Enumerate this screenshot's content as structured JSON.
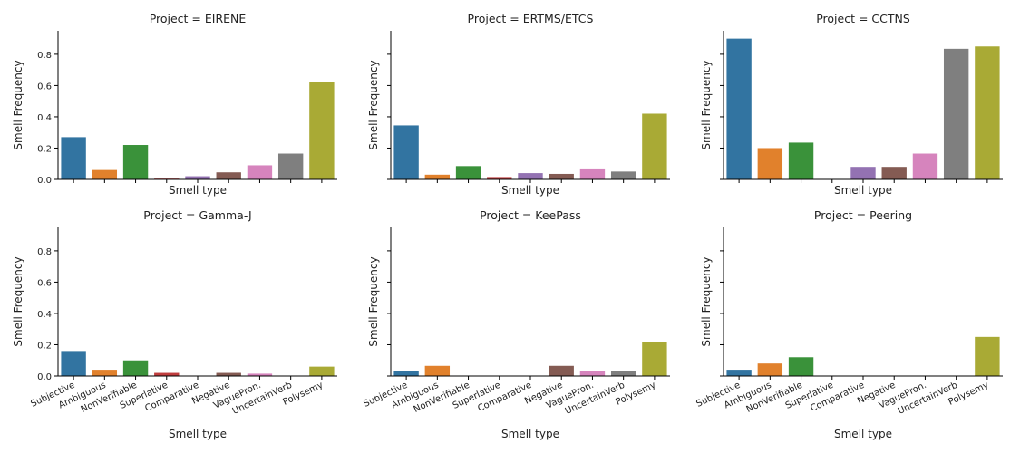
{
  "chart_data": {
    "type": "bar",
    "layout": "facet-grid",
    "facet_label_prefix": "Project = ",
    "xlabel": "Smell type",
    "ylabel": "Smell Frequency",
    "ylim": [
      0,
      0.95
    ],
    "yticks": [
      0.0,
      0.2,
      0.4,
      0.6,
      0.8
    ],
    "ytick_labels": [
      "0.0",
      "0.2",
      "0.4",
      "0.6",
      "0.8"
    ],
    "grid": false,
    "legend": "none",
    "categories": [
      "Subjective",
      "Ambiguous",
      "NonVerifiable",
      "Superlative",
      "Comparative",
      "Negative",
      "VaguePron.",
      "UncertainVerb",
      "Polysemy"
    ],
    "colors": [
      "#3274a1",
      "#e1812c",
      "#3a923a",
      "#c03d3e",
      "#9372b2",
      "#845b53",
      "#d684bd",
      "#7f7f7f",
      "#a9aa35"
    ],
    "panels": [
      {
        "project": "EIRENE",
        "values": [
          0.27,
          0.06,
          0.22,
          0.005,
          0.02,
          0.045,
          0.09,
          0.165,
          0.625
        ]
      },
      {
        "project": "ERTMS/ETCS",
        "values": [
          0.345,
          0.03,
          0.085,
          0.015,
          0.04,
          0.035,
          0.07,
          0.05,
          0.42
        ]
      },
      {
        "project": "CCTNS",
        "values": [
          0.9,
          0.2,
          0.235,
          0.0,
          0.08,
          0.08,
          0.165,
          0.835,
          0.85
        ]
      },
      {
        "project": "Gamma-J",
        "values": [
          0.16,
          0.04,
          0.1,
          0.02,
          0.0,
          0.02,
          0.015,
          0.0,
          0.06
        ]
      },
      {
        "project": "KeePass",
        "values": [
          0.03,
          0.065,
          0.0,
          0.0,
          0.0,
          0.065,
          0.03,
          0.03,
          0.22
        ]
      },
      {
        "project": "Peering",
        "values": [
          0.04,
          0.08,
          0.12,
          0.0,
          0.0,
          0.0,
          0.0,
          0.0,
          0.25
        ]
      }
    ]
  }
}
